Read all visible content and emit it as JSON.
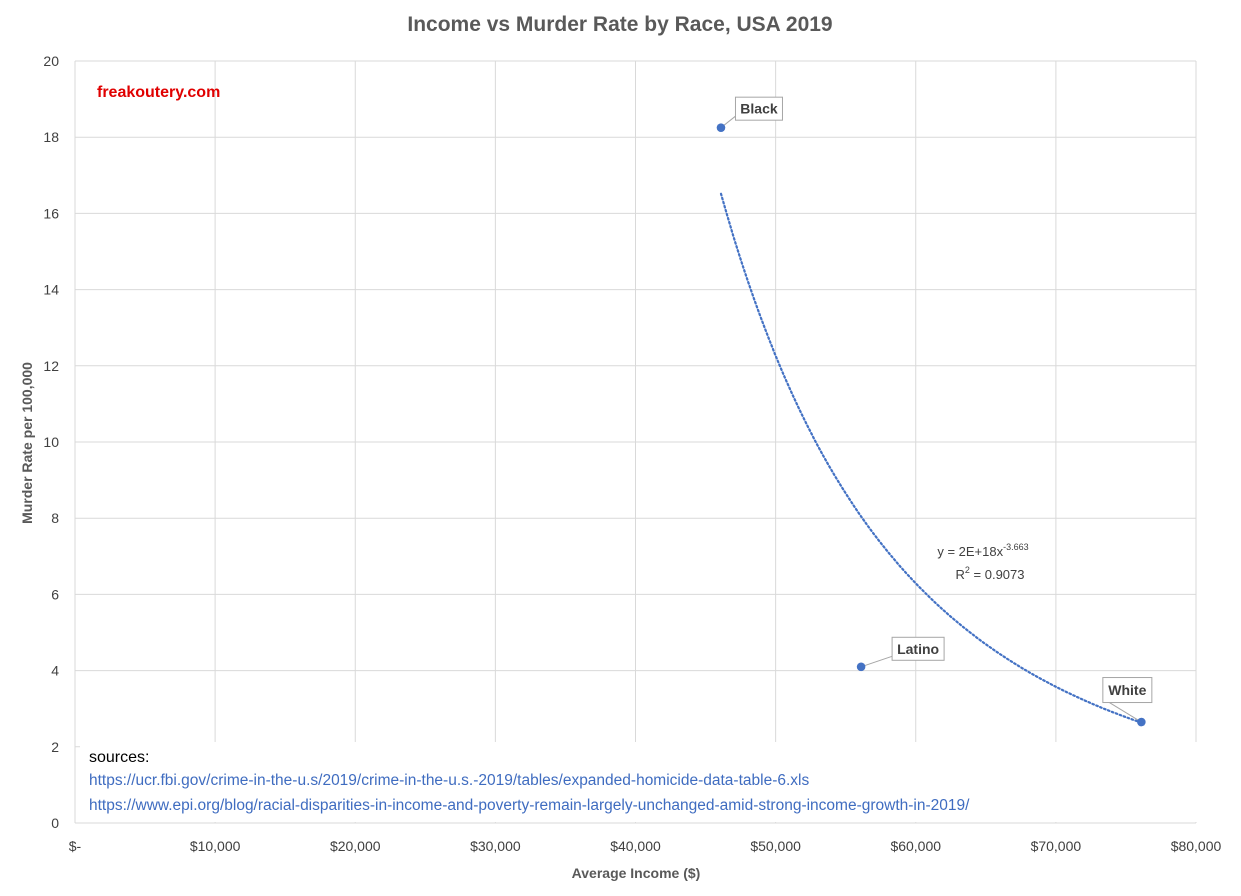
{
  "colors": {
    "marker": "#4472c4",
    "trendline": "#4472c4",
    "grid": "#d9d9d9",
    "watermark": "#e00000",
    "link": "#3f6cc0"
  },
  "watermark": "freakoutery.com",
  "chart_data": {
    "type": "scatter",
    "title": "Income vs Murder Rate by Race, USA 2019",
    "xlabel": "Average Income ($)",
    "ylabel": "Murder Rate per 100,000",
    "xlim": [
      0,
      80000
    ],
    "ylim": [
      0,
      20
    ],
    "x_ticks": [
      0,
      10000,
      20000,
      30000,
      40000,
      50000,
      60000,
      70000,
      80000
    ],
    "x_tick_labels": [
      "$-",
      "$10,000",
      "$20,000",
      "$30,000",
      "$40,000",
      "$50,000",
      "$60,000",
      "$70,000",
      "$80,000"
    ],
    "y_ticks": [
      0,
      2,
      4,
      6,
      8,
      10,
      12,
      14,
      16,
      18,
      20
    ],
    "y_tick_labels": [
      "0",
      "2",
      "4",
      "6",
      "8",
      "10",
      "12",
      "14",
      "16",
      "18",
      "20"
    ],
    "grid": true,
    "points": [
      {
        "label": "Black",
        "x": 46100,
        "y": 18.25
      },
      {
        "label": "Latino",
        "x": 56100,
        "y": 4.1
      },
      {
        "label": "White",
        "x": 76100,
        "y": 2.65
      }
    ],
    "trendline": {
      "type": "power",
      "a": 2e+18,
      "b": -3.663,
      "x_range": [
        46100,
        76000
      ],
      "equation_prefix": "y = 2E+18x",
      "equation_exponent": "-3.663",
      "r2_prefix": "R",
      "r2_exponent": "2",
      "r2_suffix": " = 0.9073"
    }
  },
  "sources": {
    "heading": "sources:",
    "links": [
      "https://ucr.fbi.gov/crime-in-the-u.s/2019/crime-in-the-u.s.-2019/tables/expanded-homicide-data-table-6.xls",
      "https://www.epi.org/blog/racial-disparities-in-income-and-poverty-remain-largely-unchanged-amid-strong-income-growth-in-2019/"
    ]
  }
}
